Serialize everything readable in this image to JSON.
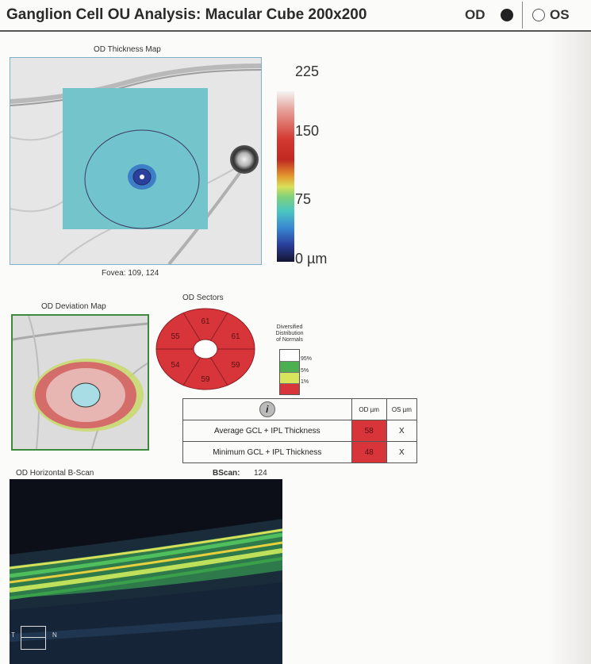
{
  "header": {
    "title": "Ganglion Cell OU Analysis: Macular Cube 200x200",
    "od_label": "OD",
    "os_label": "OS"
  },
  "thickness_map": {
    "label": "OD Thickness Map",
    "fovea": "Fovea: 109, 124"
  },
  "colorbar": {
    "ticks": [
      "225",
      "150",
      "75",
      "0 µm"
    ]
  },
  "deviation_map": {
    "label": "OD Deviation Map"
  },
  "sectors": {
    "label": "OD Sectors",
    "values": [
      "61",
      "61",
      "59",
      "59",
      "54",
      "55"
    ]
  },
  "legend": {
    "title_lines": [
      "Diversified",
      "Distribution",
      "of Normals"
    ],
    "levels": [
      "95%",
      "5%",
      "1%"
    ],
    "colors": [
      "#ffffff",
      "#4caf50",
      "#d8e55c",
      "#d8353b"
    ]
  },
  "table": {
    "info_icon": "i",
    "headers": [
      "OD µm",
      "OS µm"
    ],
    "rows": [
      {
        "label": "Average GCL + IPL Thickness",
        "od": "58",
        "os": "X"
      },
      {
        "label": "Minimum GCL + IPL Thickness",
        "od": "48",
        "os": "X"
      }
    ]
  },
  "bscan": {
    "label": "OD Horizontal B-Scan",
    "bscan_label": "BScan:",
    "bscan_value": "124",
    "t_label": "T",
    "n_label": "N"
  }
}
